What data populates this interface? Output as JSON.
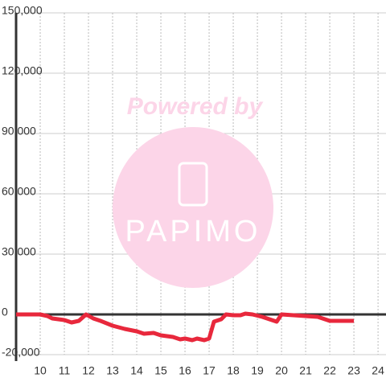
{
  "chart_data": {
    "type": "line",
    "watermark": {
      "caption": "Powered by",
      "logo": "PAPIMO"
    },
    "x": [
      9,
      10,
      10.3,
      10.5,
      11,
      11.3,
      11.6,
      11.9,
      12.2,
      12.5,
      13,
      13.5,
      14,
      14.3,
      14.7,
      15,
      15.5,
      15.8,
      16,
      16.3,
      16.5,
      16.8,
      17,
      17.2,
      17.5,
      17.7,
      18,
      18.3,
      18.5,
      18.8,
      19.2,
      19.6,
      19.8,
      20,
      20.5,
      21,
      21.5,
      22,
      22.5,
      23
    ],
    "series": [
      {
        "color": "#e8283c",
        "values": [
          0,
          0,
          -800,
          -2000,
          -2800,
          -4000,
          -3200,
          0,
          -2000,
          -3200,
          -5600,
          -7200,
          -8400,
          -9600,
          -9200,
          -10400,
          -11200,
          -12400,
          -12000,
          -12800,
          -12000,
          -12800,
          -12000,
          -3600,
          -2400,
          0,
          -400,
          -400,
          400,
          0,
          -1200,
          -2800,
          -3600,
          0,
          -400,
          -800,
          -1200,
          -3200,
          -3200,
          -3200
        ]
      }
    ],
    "xlim": [
      9,
      24.33
    ],
    "xticks": [
      10,
      11,
      12,
      13,
      14,
      15,
      16,
      17,
      18,
      19,
      20,
      21,
      22,
      23,
      24
    ],
    "ylim": [
      -20000,
      150000
    ],
    "yticks": [
      {
        "value": -20000,
        "label": "-20,000"
      },
      0,
      {
        "value": 30000,
        "label": "30,000"
      },
      {
        "value": 60000,
        "label": "60,000"
      },
      {
        "value": 90000,
        "label": "90,000"
      },
      {
        "value": 120000,
        "label": "120,000"
      },
      {
        "value": 150000,
        "label": "150,000"
      }
    ],
    "grid": true
  }
}
